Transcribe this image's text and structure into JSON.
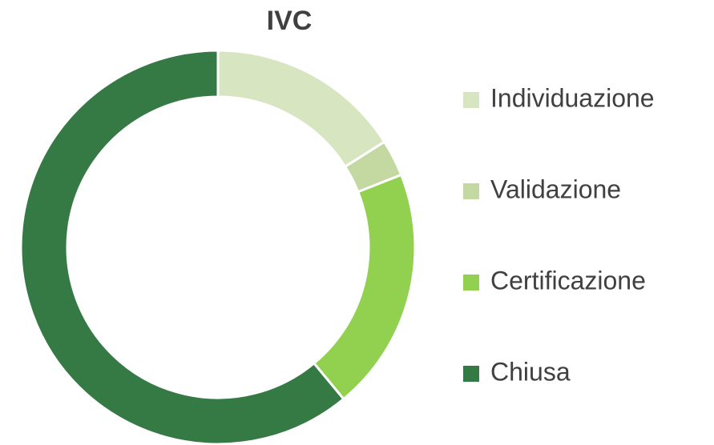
{
  "chart_data": {
    "type": "donut",
    "title": "IVC",
    "categories": [
      "Individuazione",
      "Validazione",
      "Certificazione",
      "Chiusa"
    ],
    "values": [
      16,
      3,
      20,
      61
    ],
    "colors": [
      "#d8e5c1",
      "#c3d9a1",
      "#92d050",
      "#357a44"
    ],
    "legend": "right"
  }
}
